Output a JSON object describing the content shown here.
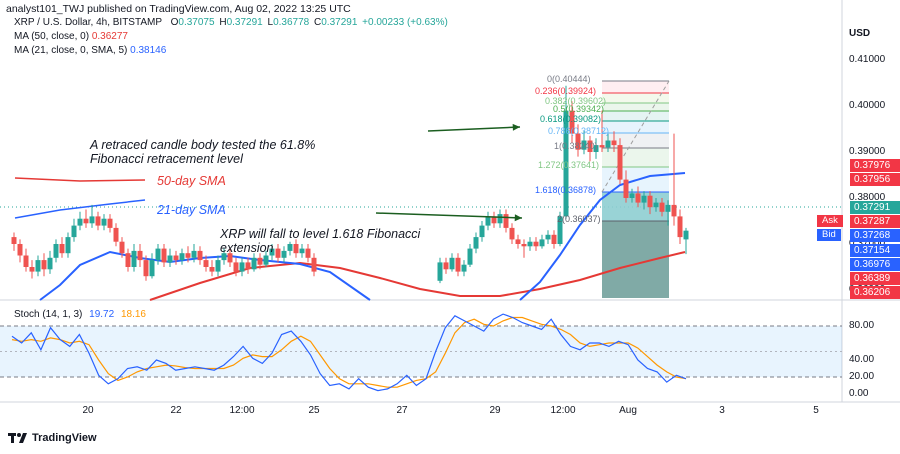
{
  "header": {
    "publisher": "analyst101_TWJ published on TradingView.com, Aug 02, 2022 13:25 UTC"
  },
  "legend": {
    "symbol": "XRP / U.S. Dollar, 4h, BITSTAMP",
    "open_label": "O",
    "open": "0.37075",
    "high_label": "H",
    "high": "0.37291",
    "low_label": "L",
    "low": "0.36778",
    "close_label": "C",
    "close": "0.37291",
    "change": "+0.00233 (+0.63%)",
    "ma50_label": "MA (50, close, 0)",
    "ma50_value": "0.36277",
    "ma21_label": "MA (21, close, 0, SMA, 5)",
    "ma21_value": "0.38146"
  },
  "price_axis": {
    "currency": "USD",
    "ticks": [
      "0.41000",
      "0.40000",
      "0.39000",
      "0.38000",
      "0.37000",
      "0.36000"
    ],
    "labels": [
      {
        "text": "0.37976",
        "color": "#f23645"
      },
      {
        "text": "0.37956",
        "color": "#f23645"
      },
      {
        "text": "0.37291",
        "color": "#26a69a"
      },
      {
        "text": "0.37287",
        "color": "#f23645",
        "tag": "Ask"
      },
      {
        "text": "0.37268",
        "color": "#2962ff",
        "tag": "Bid"
      },
      {
        "text": "0.37154",
        "color": "#2962ff"
      },
      {
        "text": "0.36976",
        "color": "#2962ff"
      },
      {
        "text": "0.36389",
        "color": "#f23645"
      },
      {
        "text": "0.36206",
        "color": "#f23645"
      }
    ]
  },
  "annotations": {
    "retrace_text": "A retraced candle body tested the 61.8% Fibonacci retracement level",
    "ma50_text": "50-day SMA",
    "ma21_text": "21-day SMA",
    "fall_text": "XRP will fall to level 1.618 Fibonacci extension"
  },
  "fibonacci": [
    {
      "text": "0(0.40444)",
      "color": "#787b86"
    },
    {
      "text": "0.236(0.39924)",
      "color": "#f23645"
    },
    {
      "text": "0.382(0.39602)",
      "color": "#81c784"
    },
    {
      "text": "0.5(0.39342)",
      "color": "#4caf50"
    },
    {
      "text": "0.618(0.39082)",
      "color": "#089981"
    },
    {
      "text": "0.786(0.38712)",
      "color": "#64b5f6"
    },
    {
      "text": "1(0.38240)",
      "color": "#787b86"
    },
    {
      "text": "1.272(0.37641)",
      "color": "#81c784"
    },
    {
      "text": "1.618(0.36878)",
      "color": "#2962ff"
    },
    {
      "text": "2(0.36037)",
      "color": "#5d606b"
    }
  ],
  "stoch": {
    "label": "Stoch (14, 1, 3)",
    "k_value": "19.72",
    "d_value": "18.16",
    "ticks": [
      "80.00",
      "40.00",
      "20.00",
      "0.00"
    ],
    "k": [
      68,
      60,
      72,
      52,
      78,
      64,
      56,
      70,
      48,
      22,
      12,
      18,
      30,
      32,
      28,
      40,
      36,
      28,
      30,
      32,
      30,
      28,
      34,
      44,
      56,
      42,
      36,
      48,
      70,
      74,
      62,
      46,
      24,
      10,
      12,
      6,
      18,
      8,
      4,
      6,
      12,
      22,
      10,
      18,
      50,
      78,
      92,
      86,
      80,
      74,
      88,
      94,
      90,
      84,
      80,
      76,
      88,
      70,
      56,
      52,
      60,
      60,
      56,
      62,
      58,
      40,
      30,
      26,
      14,
      22,
      18
    ],
    "d": [
      64,
      62,
      64,
      62,
      66,
      64,
      60,
      62,
      58,
      40,
      24,
      16,
      20,
      26,
      30,
      32,
      34,
      33,
      31,
      30,
      30,
      30,
      30,
      34,
      42,
      46,
      44,
      44,
      52,
      62,
      68,
      62,
      46,
      30,
      18,
      12,
      12,
      12,
      10,
      8,
      8,
      12,
      16,
      18,
      26,
      48,
      72,
      84,
      88,
      82,
      80,
      86,
      90,
      90,
      86,
      82,
      80,
      76,
      70,
      60,
      56,
      58,
      60,
      60,
      60,
      54,
      44,
      34,
      26,
      20,
      18
    ]
  },
  "x_axis": {
    "ticks": [
      "20",
      "22",
      "12:00",
      "25",
      "27",
      "29",
      "12:00",
      "Aug",
      "3",
      "5"
    ]
  },
  "footer": {
    "brand": "TradingView"
  },
  "colors": {
    "up": "#26a69a",
    "down": "#ef5350",
    "ma50": "#e53935",
    "ma21": "#2962ff",
    "stoch_k": "#2962ff",
    "stoch_d": "#ff9800",
    "arrow": "#1b5e20"
  }
}
